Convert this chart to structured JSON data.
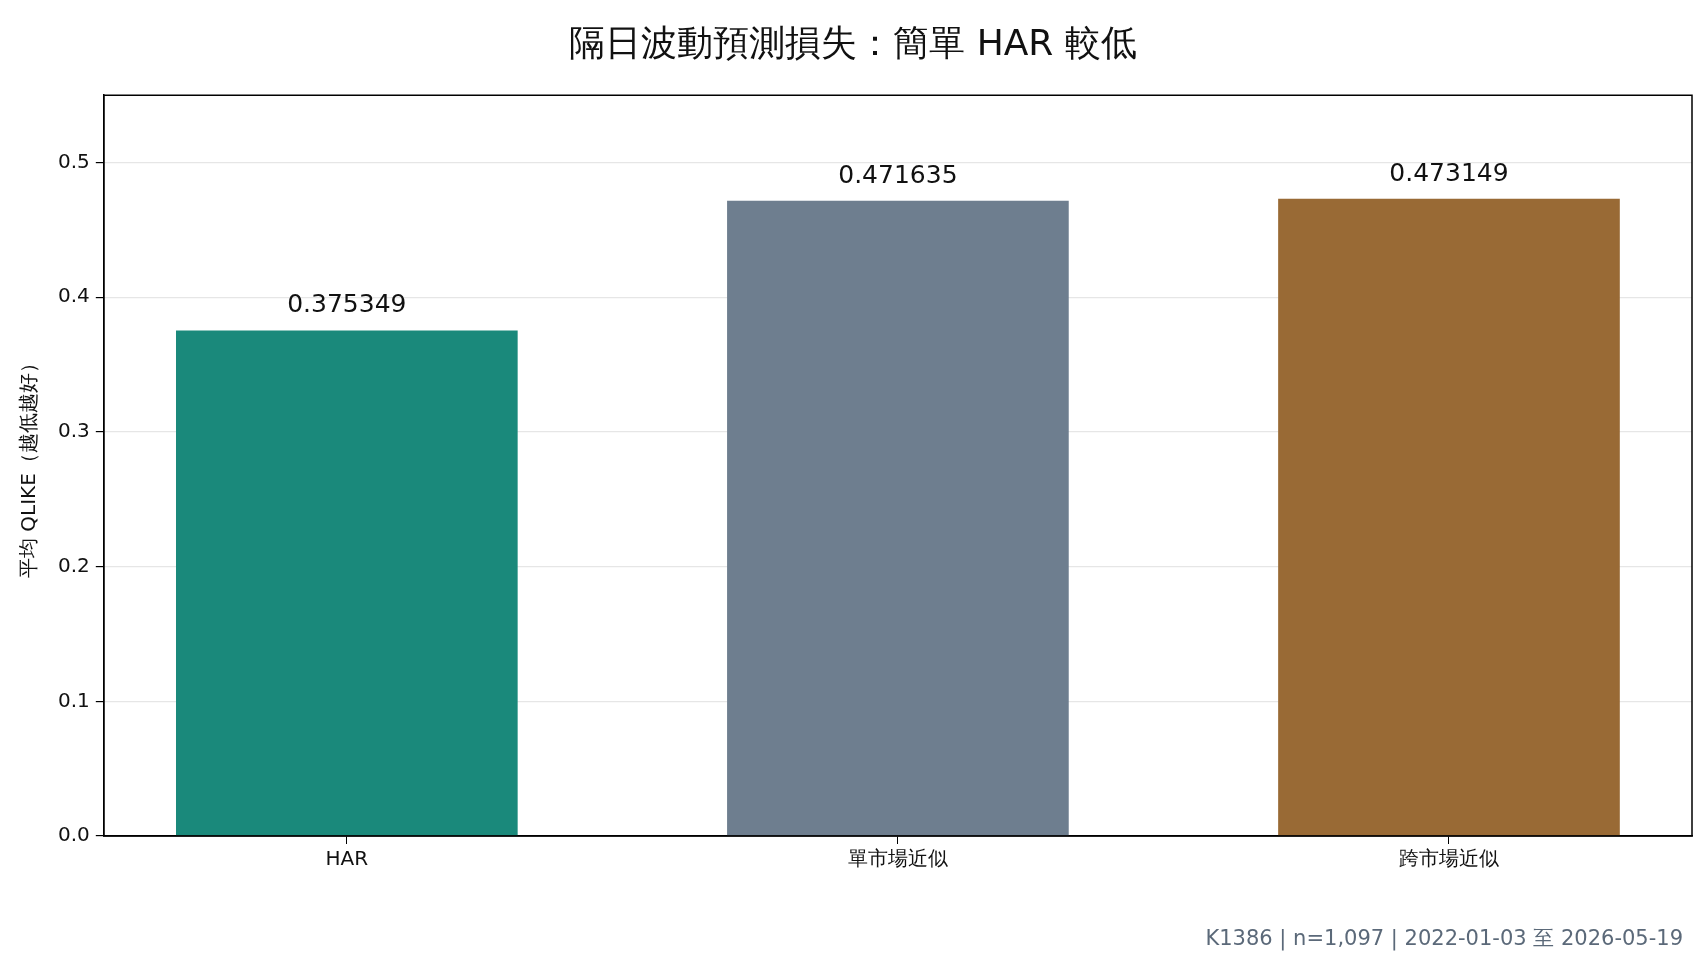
{
  "chart_data": {
    "type": "bar",
    "title": "隔日波動預測損失：簡單 HAR 較低",
    "ylabel": "平均 QLIKE（越低越好）",
    "categories": [
      "HAR",
      "單市場近似",
      "跨市場近似"
    ],
    "values": [
      0.375349,
      0.471635,
      0.473149
    ],
    "colors": [
      "#1a897b",
      "#6e7e8f",
      "#996a35"
    ],
    "ylim": [
      0,
      0.55
    ],
    "yticks": [
      {
        "value": 0,
        "label": "0.0"
      },
      0.1,
      0.2,
      0.3,
      0.4,
      0.5
    ],
    "grid": "y",
    "data_labels": true,
    "annotations": [
      "K1386 | n=1,097 | 2022-01-03 至 2026-05-19"
    ]
  }
}
